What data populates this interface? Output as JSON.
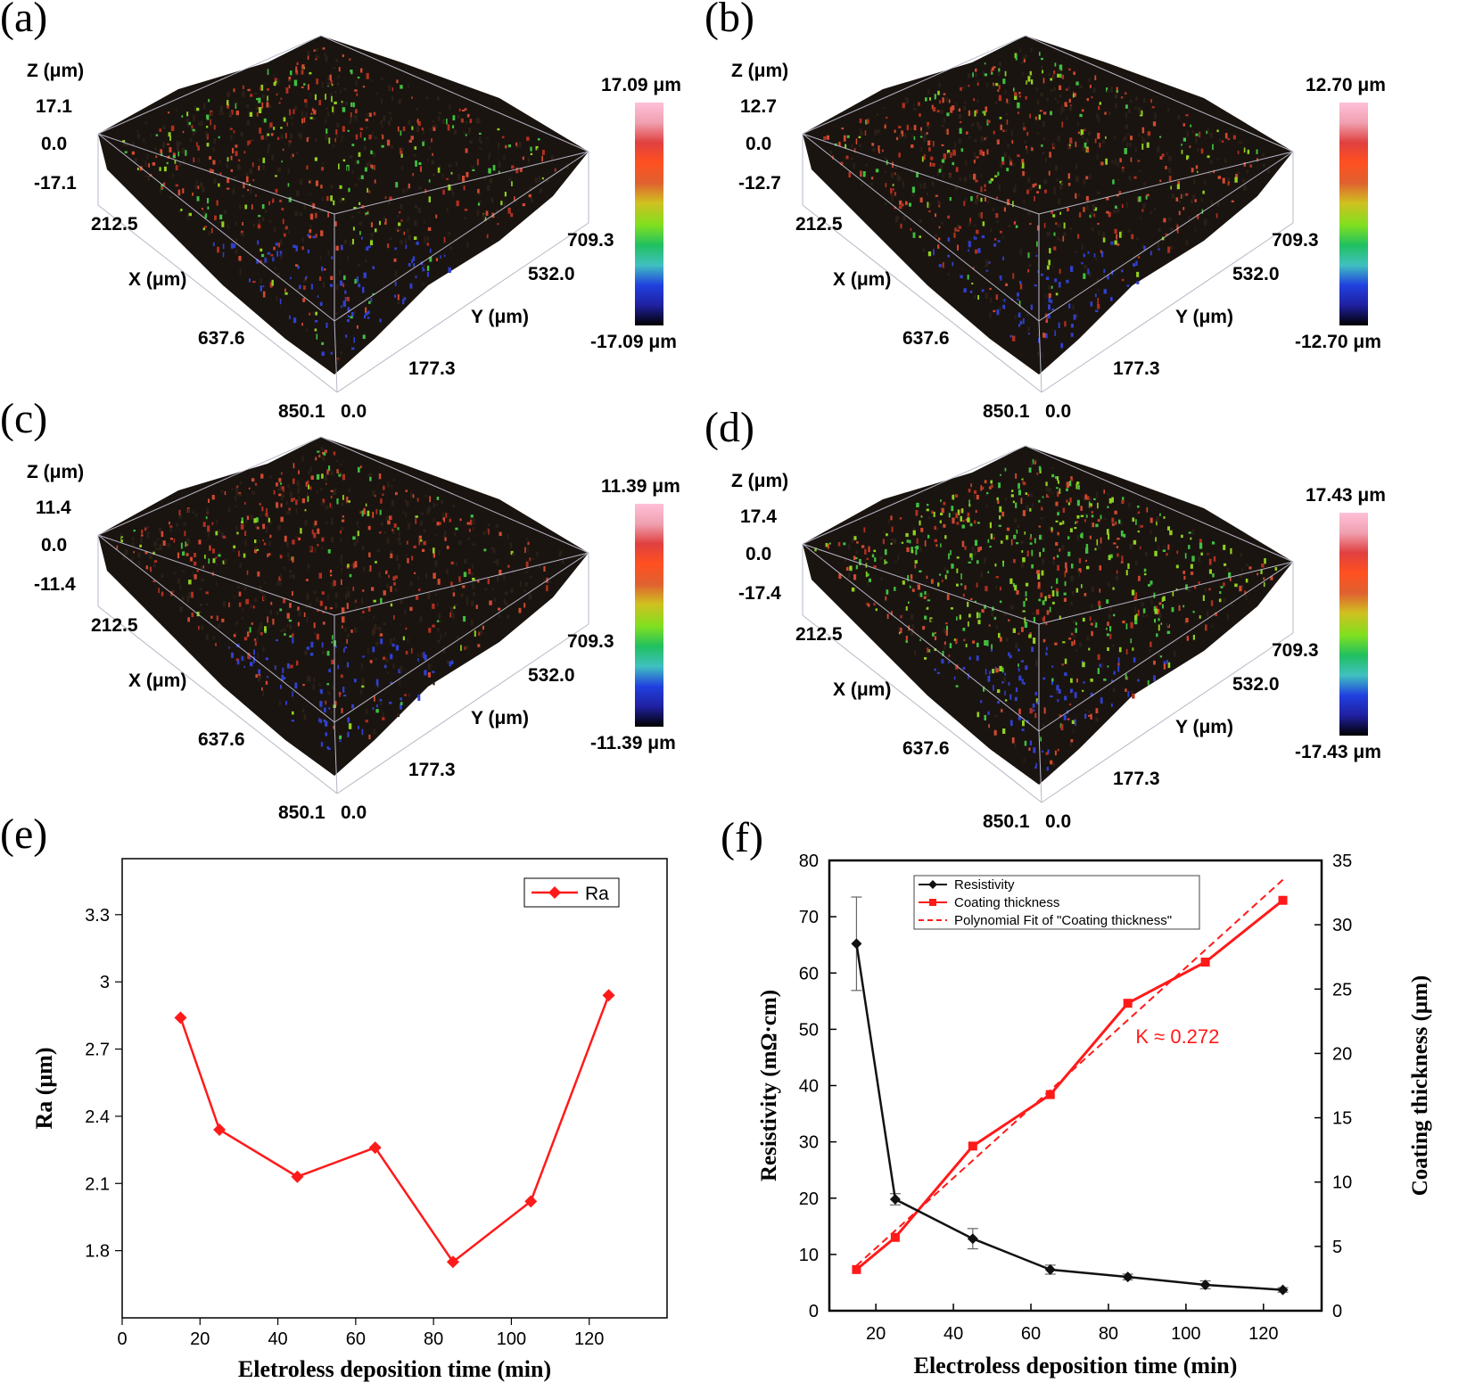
{
  "surface_panels": [
    {
      "label": "(a)",
      "z_axis_label": "Z (μm)",
      "z_ticks": [
        "17.1",
        "0.0",
        "-17.1"
      ],
      "x_axis_label": "X (μm)",
      "x_ticks": [
        "212.5",
        "637.6",
        "850.1"
      ],
      "y_axis_label": "Y (μm)",
      "y_ticks": [
        "709.3",
        "532.0",
        "177.3",
        "0.0"
      ],
      "colorbar_max": "17.09 μm",
      "colorbar_min": "-17.09 μm"
    },
    {
      "label": "(b)",
      "z_axis_label": "Z (μm)",
      "z_ticks": [
        "12.7",
        "0.0",
        "-12.7"
      ],
      "x_axis_label": "X (μm)",
      "x_ticks": [
        "212.5",
        "637.6",
        "850.1"
      ],
      "y_axis_label": "Y (μm)",
      "y_ticks": [
        "709.3",
        "532.0",
        "177.3",
        "0.0"
      ],
      "colorbar_max": "12.70 μm",
      "colorbar_min": "-12.70 μm"
    },
    {
      "label": "(c)",
      "z_axis_label": "Z (μm)",
      "z_ticks": [
        "11.4",
        "0.0",
        "-11.4"
      ],
      "x_axis_label": "X (μm)",
      "x_ticks": [
        "212.5",
        "637.6",
        "850.1"
      ],
      "y_axis_label": "Y (μm)",
      "y_ticks": [
        "709.3",
        "532.0",
        "177.3",
        "0.0"
      ],
      "colorbar_max": "11.39 μm",
      "colorbar_min": "-11.39 μm"
    },
    {
      "label": "(d)",
      "z_axis_label": "Z (μm)",
      "z_ticks": [
        "17.4",
        "0.0",
        "-17.4"
      ],
      "x_axis_label": "X (μm)",
      "x_ticks": [
        "212.5",
        "637.6",
        "850.1"
      ],
      "y_axis_label": "Y (μm)",
      "y_ticks": [
        "709.3",
        "532.0",
        "177.3",
        "0.0"
      ],
      "colorbar_max": "17.43 μm",
      "colorbar_min": "-17.43 μm"
    }
  ],
  "colorbar_colors": [
    "#ffc0d8",
    "#f0a0b0",
    "#e04040",
    "#ff5020",
    "#e06030",
    "#d0c020",
    "#80e020",
    "#20c060",
    "#40c0c0",
    "#2040e0",
    "#2020a0",
    "#000000"
  ],
  "chart_data": [
    {
      "type": "line",
      "panel_label": "(e)",
      "title": "",
      "xlabel": "Eletroless deposition time (min)",
      "ylabel": "Ra (μm)",
      "xlim": [
        0,
        140
      ],
      "ylim": [
        1.5,
        3.55
      ],
      "xticks": [
        0,
        20,
        40,
        60,
        80,
        100,
        120
      ],
      "yticks": [
        1.8,
        2.1,
        2.4,
        2.7,
        3.0,
        3.3
      ],
      "series": [
        {
          "name": "Ra",
          "color": "#ff1a1a",
          "marker": "diamond",
          "x": [
            15,
            25,
            45,
            65,
            85,
            105,
            125
          ],
          "y": [
            2.84,
            2.34,
            2.13,
            2.26,
            1.75,
            2.02,
            2.94
          ]
        }
      ],
      "legend": "top-right"
    },
    {
      "type": "line",
      "panel_label": "(f)",
      "title": "",
      "xlabel": "Electroless deposition time (min)",
      "ylabel": "Resistivity (mΩ·cm)",
      "y2label": "Coating thickness (μm)",
      "xlim": [
        8,
        135
      ],
      "ylim": [
        0,
        80
      ],
      "y2lim": [
        0,
        35
      ],
      "xticks": [
        20,
        40,
        60,
        80,
        100,
        120
      ],
      "yticks": [
        0,
        10,
        20,
        30,
        40,
        50,
        60,
        70,
        80
      ],
      "y2ticks": [
        0,
        5,
        10,
        15,
        20,
        25,
        30,
        35
      ],
      "series": [
        {
          "name": "Resistivity",
          "color": "#111111",
          "marker": "diamond",
          "axis": "left",
          "x": [
            15,
            25,
            45,
            65,
            85,
            105,
            125
          ],
          "y": [
            65.2,
            19.8,
            12.8,
            7.3,
            6.0,
            4.6,
            3.7
          ],
          "err": [
            8.3,
            1.0,
            1.8,
            0.8,
            0.5,
            0.7,
            0.4
          ]
        },
        {
          "name": "Coating thickness",
          "color": "#ff1a1a",
          "marker": "square",
          "axis": "right",
          "x": [
            15,
            25,
            45,
            65,
            85,
            105,
            125
          ],
          "y": [
            3.2,
            5.7,
            12.8,
            16.8,
            23.9,
            27.1,
            31.9
          ]
        },
        {
          "name": "Polynomial Fit of \"Coating thickness\"",
          "color": "#ff1a1a",
          "dashed": true,
          "axis": "right",
          "x": [
            15,
            125
          ],
          "y": [
            3.5,
            33.5
          ]
        }
      ],
      "annotation": "K ≈ 0.272",
      "legend": "top-left"
    }
  ]
}
